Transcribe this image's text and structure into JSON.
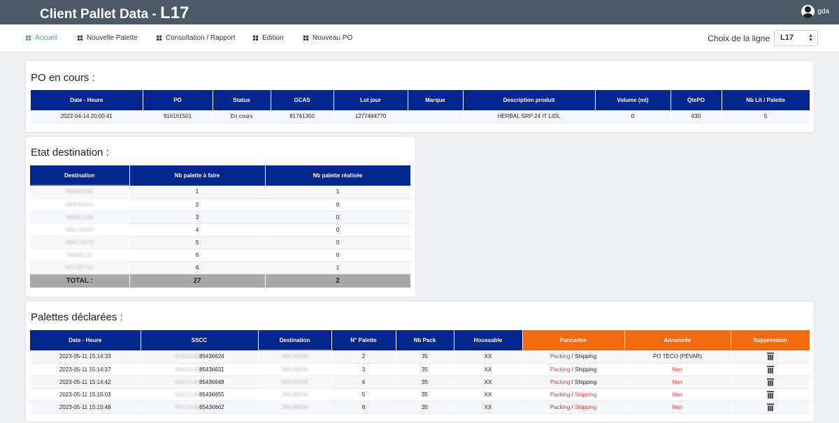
{
  "header": {
    "title_prefix": "Client Pallet Data - ",
    "title_line": "L17",
    "user": "gda"
  },
  "nav": {
    "items": [
      {
        "label": "Accueil"
      },
      {
        "label": "Nouvelle Palette"
      },
      {
        "label": "Consultation / Rapport"
      },
      {
        "label": "Edition"
      },
      {
        "label": "Nouveau PO"
      }
    ],
    "line_choice_label": "Choix de la ligne",
    "line_selected": "L17"
  },
  "po": {
    "title": "PO en cours :",
    "headers": [
      "Date - Heure",
      "PO",
      "Status",
      "GCAS",
      "Lot jour",
      "Marque",
      "Description produit",
      "Volume (ml)",
      "QtePO",
      "Nb Lit / Palette"
    ],
    "row": [
      "2022-04-14 20:00:41",
      "916161501",
      "En cours",
      "81741350",
      "1277484770",
      "",
      "HERBAL SRP 24 IT LIDL",
      "0",
      "630",
      "5"
    ]
  },
  "destination": {
    "title": "Etat destination :",
    "headers": [
      "Destination",
      "Nb palette à faire",
      "Nb palette réalisée"
    ],
    "rows": [
      {
        "dest": "3908AEME",
        "todo": "1",
        "done": "1"
      },
      {
        "dest": "390FRANC",
        "todo": "2",
        "done": "0"
      },
      {
        "dest": "390ALLEM",
        "todo": "3",
        "done": "0"
      },
      {
        "dest": "390LONDO",
        "todo": "4",
        "done": "0"
      },
      {
        "dest": "390CUSTO",
        "todo": "5",
        "done": "0"
      },
      {
        "dest": "390BELGI",
        "todo": "6",
        "done": "0"
      },
      {
        "dest": "RECEPTIO",
        "todo": "6",
        "done": "1"
      }
    ],
    "total_label": "TOTAL :",
    "total_todo": "27",
    "total_done": "2"
  },
  "palettes": {
    "title": "Palettes déclarées :",
    "headers": [
      "Date - Heure",
      "SSCC",
      "Destination",
      "N° Palette",
      "Nb Pack",
      "Houssable",
      "Pancartes",
      "Annoncée",
      "Suppression"
    ],
    "packing_label": "Packing",
    "separator": " / ",
    "shipping_label": "Shipping",
    "rows": [
      {
        "date": "2023-05-11 15:14:33",
        "sscc_hidden": "35413149",
        "sscc_visible": "85436624",
        "dest": "390UBEMI",
        "num": "2",
        "packs": "35",
        "houssable": "XX",
        "shipping_red": false,
        "annonce": "PO TECO (PEVAR)",
        "annonce_red": false
      },
      {
        "date": "2023-05-11 15:14:37",
        "sscc_hidden": "35413149",
        "sscc_visible": "85436631",
        "dest": "390UBEMI",
        "num": "3",
        "packs": "35",
        "houssable": "XX",
        "shipping_red": false,
        "annonce": "Non",
        "annonce_red": true
      },
      {
        "date": "2023-05-11 15:14:42",
        "sscc_hidden": "35413149",
        "sscc_visible": "85436648",
        "dest": "390UBEMI",
        "num": "4",
        "packs": "35",
        "houssable": "XX",
        "shipping_red": false,
        "annonce": "Non",
        "annonce_red": true
      },
      {
        "date": "2023-05-11 15:15:03",
        "sscc_hidden": "35413149",
        "sscc_visible": "85436655",
        "dest": "390UBEMI",
        "num": "5",
        "packs": "35",
        "houssable": "XX",
        "shipping_red": true,
        "annonce": "Non",
        "annonce_red": true
      },
      {
        "date": "2023-05-11 15:15:48",
        "sscc_hidden": "35413149",
        "sscc_visible": "85436662",
        "dest": "390UBEMI",
        "num": "6",
        "packs": "35",
        "houssable": "XX",
        "shipping_red": true,
        "annonce": "Non",
        "annonce_red": true
      }
    ]
  },
  "colors": {
    "topbar": "#4b5a66",
    "table_header": "#03268c",
    "orange_header": "#f26b11",
    "red_text": "#e53935",
    "active_nav": "#4a90d9"
  }
}
